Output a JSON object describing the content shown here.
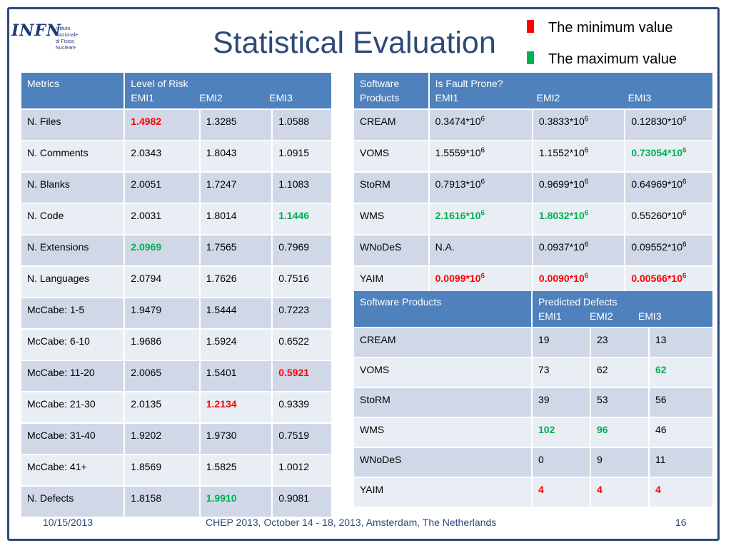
{
  "logo": {
    "text": "INFN",
    "subtitle": "Istituto Nazionale\ndi Fisica Nucleare"
  },
  "title": "Statistical Evaluation",
  "legend": [
    {
      "label": "The minimum value",
      "color": "#ff0000"
    },
    {
      "label": "The maximum value",
      "color": "#00b050"
    }
  ],
  "table_metrics": {
    "header": {
      "col1": "Metrics",
      "col2": "Level of Risk",
      "sub": [
        "EMI1",
        "EMI2",
        "EMI3"
      ]
    },
    "rows": [
      {
        "name": "N. Files",
        "values": [
          "1.4982",
          "1.3285",
          "1.0588"
        ],
        "marks": [
          "min",
          "",
          ""
        ]
      },
      {
        "name": "N. Comments",
        "values": [
          "2.0343",
          "1.8043",
          "1.0915"
        ],
        "marks": [
          "",
          "",
          ""
        ]
      },
      {
        "name": "N. Blanks",
        "values": [
          "2.0051",
          "1.7247",
          "1.1083"
        ],
        "marks": [
          "",
          "",
          ""
        ]
      },
      {
        "name": "N. Code",
        "values": [
          "2.0031",
          "1.8014",
          "1.1446"
        ],
        "marks": [
          "",
          "",
          "max"
        ]
      },
      {
        "name": "N. Extensions",
        "values": [
          "2.0969",
          "1.7565",
          "0.7969"
        ],
        "marks": [
          "max",
          "",
          ""
        ]
      },
      {
        "name": "N. Languages",
        "values": [
          "2.0794",
          "1.7626",
          "0.7516"
        ],
        "marks": [
          "",
          "",
          ""
        ]
      },
      {
        "name": "McCabe: 1-5",
        "values": [
          "1.9479",
          "1.5444",
          "0.7223"
        ],
        "marks": [
          "",
          "",
          ""
        ]
      },
      {
        "name": "McCabe: 6-10",
        "values": [
          "1.9686",
          "1.5924",
          "0.6522"
        ],
        "marks": [
          "",
          "",
          ""
        ]
      },
      {
        "name": "McCabe: 11-20",
        "values": [
          "2.0065",
          "1.5401",
          "0.5921"
        ],
        "marks": [
          "",
          "",
          "min"
        ]
      },
      {
        "name": "McCabe: 21-30",
        "values": [
          "2.0135",
          "1.2134",
          "0.9339"
        ],
        "marks": [
          "",
          "min",
          ""
        ]
      },
      {
        "name": "McCabe: 31-40",
        "values": [
          "1.9202",
          "1.9730",
          "0.7519"
        ],
        "marks": [
          "",
          "",
          ""
        ]
      },
      {
        "name": "McCabe: 41+",
        "values": [
          "1.8569",
          "1.5825",
          "1.0012"
        ],
        "marks": [
          "",
          "",
          ""
        ]
      },
      {
        "name": "N. Defects",
        "values": [
          "1.8158",
          "1.9910",
          "0.9081"
        ],
        "marks": [
          "",
          "max",
          ""
        ]
      }
    ]
  },
  "table_fault": {
    "header": {
      "col1": "Software\nProducts",
      "col2": "Is Fault Prone?",
      "sub": [
        "EMI1",
        "EMI2",
        "EMI3"
      ]
    },
    "exp_suffix": "*10",
    "exponent": "6",
    "rows": [
      {
        "name": "CREAM",
        "values": [
          "0.3474",
          "0.3833",
          "0.12830"
        ],
        "marks": [
          "",
          "",
          ""
        ]
      },
      {
        "name": "VOMS",
        "values": [
          "1.5559",
          "1.1552",
          "0.73054"
        ],
        "marks": [
          "",
          "",
          "max"
        ]
      },
      {
        "name": "StoRM",
        "values": [
          "0.7913",
          "0.9699",
          "0.64969"
        ],
        "marks": [
          "",
          "",
          ""
        ]
      },
      {
        "name": "WMS",
        "values": [
          "2.1616",
          "1.8032",
          "0.55260"
        ],
        "marks": [
          "max",
          "max",
          ""
        ]
      },
      {
        "name": "WNoDeS",
        "values": [
          "N.A.",
          "0.0937",
          "0.09552"
        ],
        "marks": [
          "",
          "",
          ""
        ]
      },
      {
        "name": "YAIM",
        "values": [
          "0.0099",
          "0.0090",
          "0.00566"
        ],
        "marks": [
          "min",
          "min",
          "min"
        ]
      }
    ]
  },
  "table_defects": {
    "header": {
      "col1": "Software Products",
      "col2": "Predicted Defects",
      "sub": [
        "EMI1",
        "EMI2",
        "EMI3"
      ]
    },
    "rows": [
      {
        "name": "CREAM",
        "values": [
          "19",
          "23",
          "13"
        ],
        "marks": [
          "",
          "",
          ""
        ]
      },
      {
        "name": "VOMS",
        "values": [
          "73",
          "62",
          "62"
        ],
        "marks": [
          "",
          "",
          "max"
        ]
      },
      {
        "name": "StoRM",
        "values": [
          "39",
          "53",
          "56"
        ],
        "marks": [
          "",
          "",
          ""
        ]
      },
      {
        "name": "WMS",
        "values": [
          "102",
          "96",
          "46"
        ],
        "marks": [
          "max",
          "max",
          ""
        ]
      },
      {
        "name": "WNoDeS",
        "values": [
          "0",
          "9",
          "11"
        ],
        "marks": [
          "",
          "",
          ""
        ]
      },
      {
        "name": "YAIM",
        "values": [
          "4",
          "4",
          "4"
        ],
        "marks": [
          "min",
          "min",
          "min"
        ]
      }
    ]
  },
  "footer": {
    "date": "10/15/2013",
    "event": "CHEP 2013, October 14 - 18, 2013, Amsterdam, The Netherlands",
    "page": "16"
  }
}
